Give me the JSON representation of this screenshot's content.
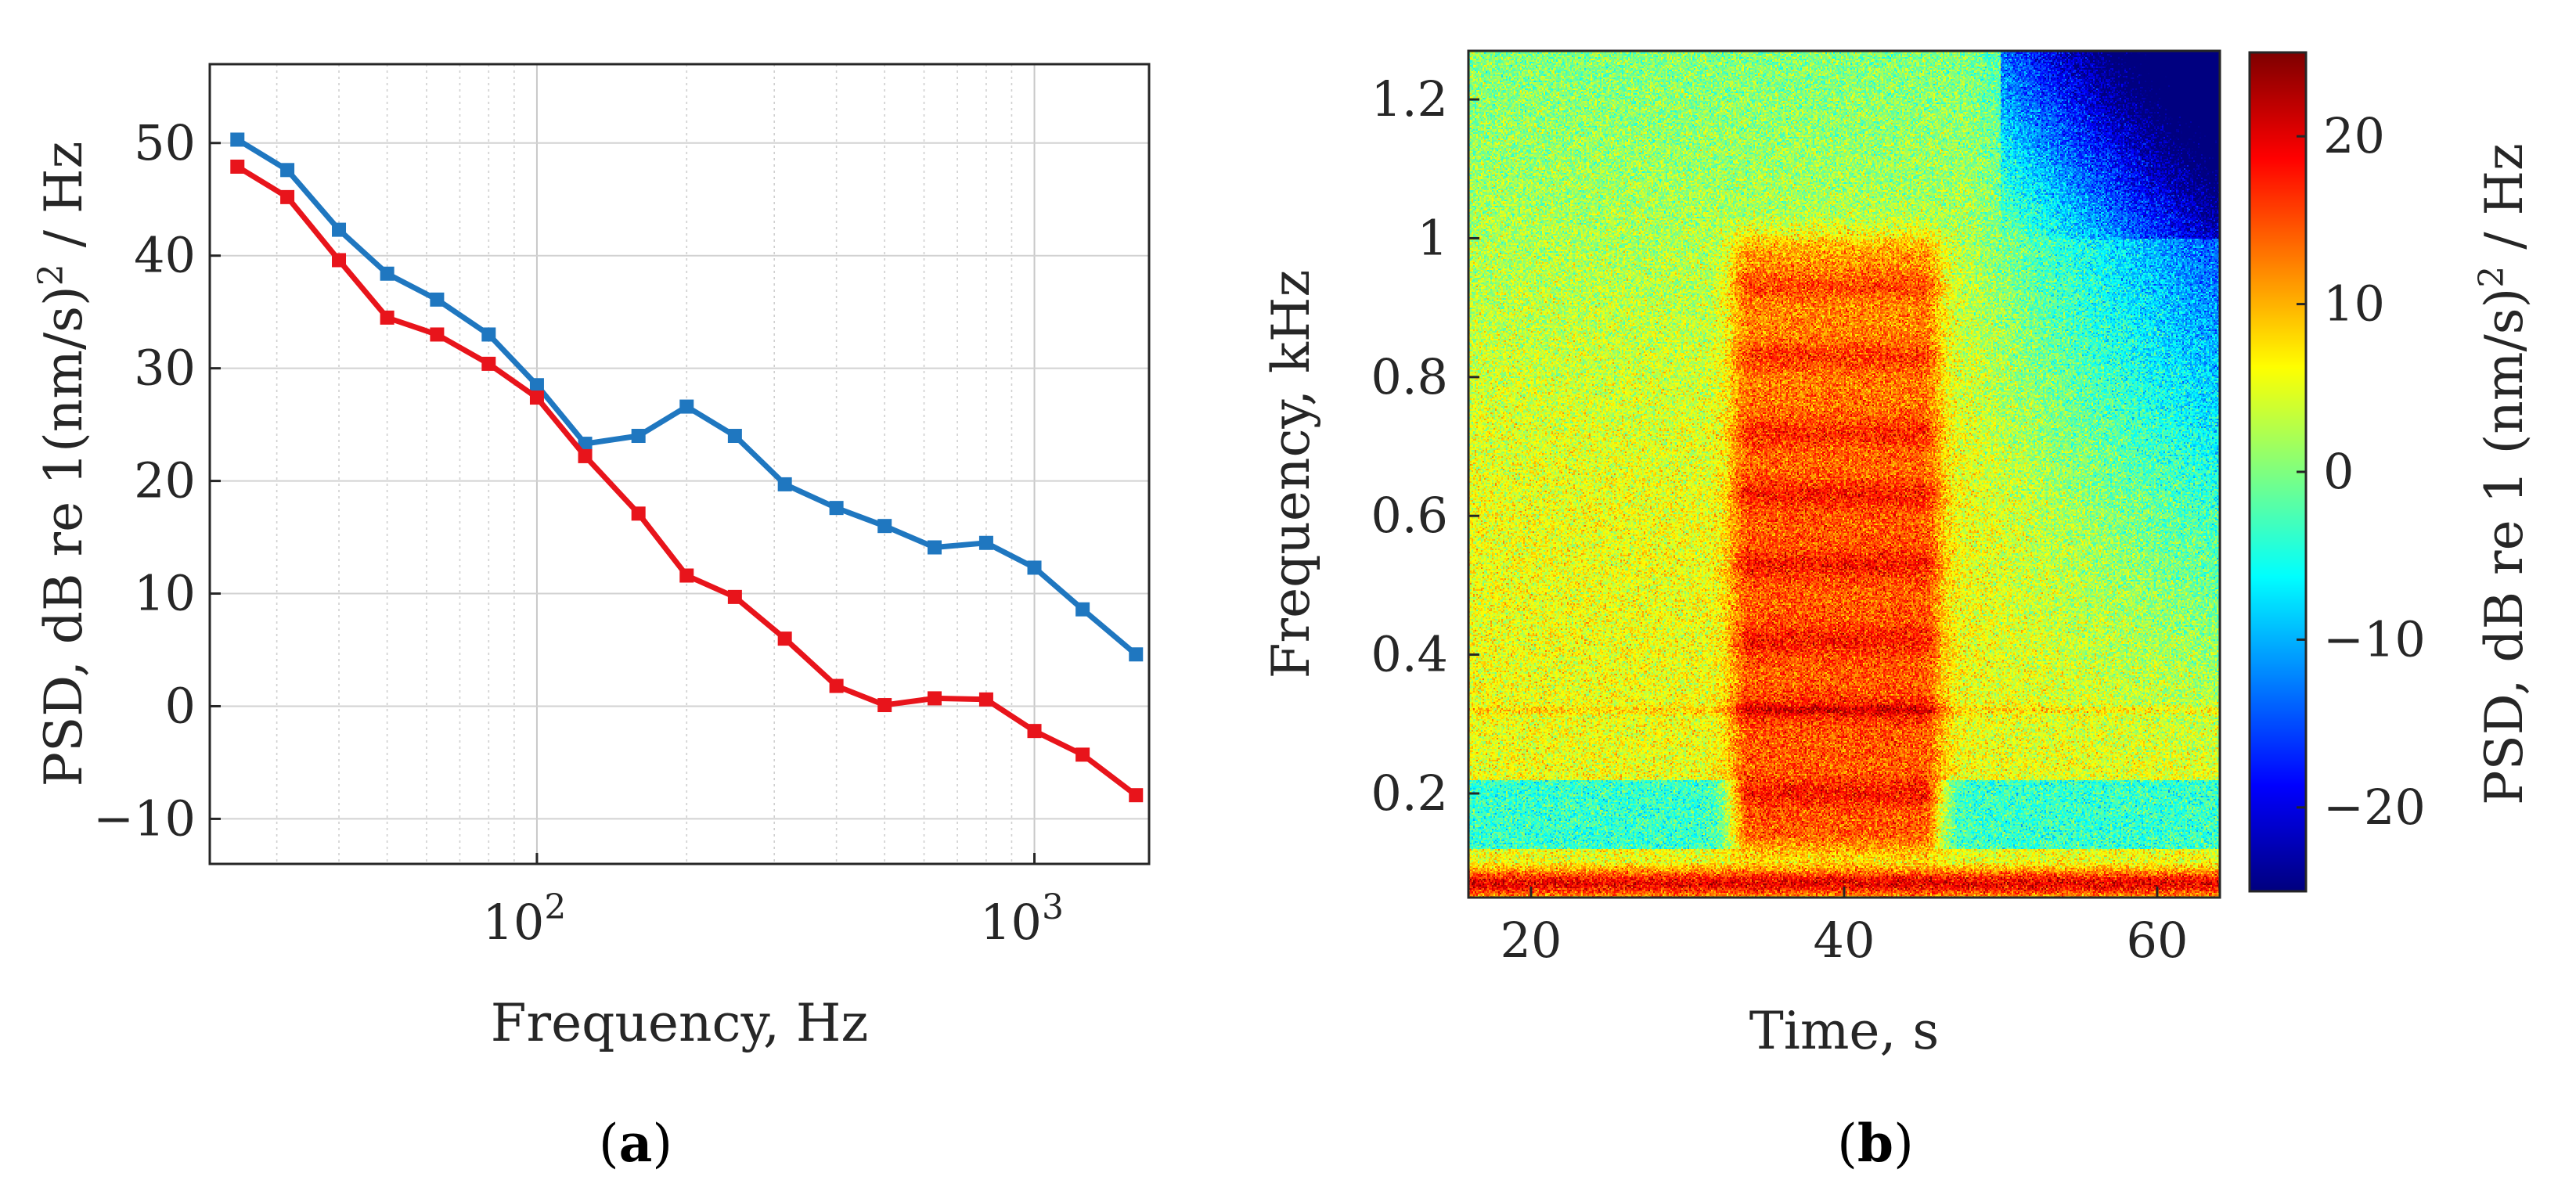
{
  "chart_data": [
    {
      "type": "line",
      "panel_label": "a",
      "xscale": "log",
      "xlabel": "Frequency, Hz",
      "ylabel": "PSD, dB re 1(nm/s)",
      "ylabel_sup": "2",
      "ylabel_tail": " / Hz",
      "xlim": [
        22,
        1700
      ],
      "ylim": [
        -14,
        57
      ],
      "x_ticks": [
        {
          "value": 100,
          "base": "10",
          "exp": "2"
        },
        {
          "value": 1000,
          "base": "10",
          "exp": "3"
        }
      ],
      "y_ticks": [
        -10,
        0,
        10,
        20,
        30,
        40,
        50
      ],
      "y_tick_labels": [
        "−10",
        "0",
        "10",
        "20",
        "30",
        "40",
        "50"
      ],
      "grid": true,
      "x": [
        25,
        31.5,
        40,
        50,
        63,
        80,
        100,
        125,
        160,
        200,
        250,
        315,
        400,
        500,
        630,
        800,
        1000,
        1250,
        1600
      ],
      "series": [
        {
          "name": "blue",
          "color": "#1f77c0",
          "values": [
            50.3,
            47.6,
            42.3,
            38.4,
            36.1,
            33.0,
            28.5,
            23.3,
            24.0,
            26.6,
            24.0,
            19.7,
            17.6,
            16.0,
            14.1,
            14.5,
            12.3,
            8.6,
            4.6
          ]
        },
        {
          "name": "red",
          "color": "#e8141b",
          "values": [
            47.9,
            45.2,
            39.6,
            34.5,
            33.0,
            30.4,
            27.4,
            22.2,
            17.1,
            11.6,
            9.7,
            6.0,
            1.8,
            0.1,
            0.7,
            0.6,
            -2.2,
            -4.3,
            -7.9
          ]
        }
      ]
    },
    {
      "type": "heatmap",
      "panel_label": "b",
      "xlabel": "Time, s",
      "ylabel": "Frequency, kHz",
      "xlim": [
        16,
        64
      ],
      "ylim": [
        0.05,
        1.27
      ],
      "x_ticks": [
        20,
        40,
        60
      ],
      "x_tick_labels": [
        "20",
        "40",
        "60"
      ],
      "y_ticks": [
        0.2,
        0.4,
        0.6,
        0.8,
        1.0,
        1.2
      ],
      "y_tick_labels": [
        "0.2",
        "0.4",
        "0.6",
        "0.8",
        "1",
        "1.2"
      ],
      "colormap": "jet",
      "colorbar": {
        "range": [
          -25,
          25
        ],
        "ticks": [
          -20,
          -10,
          0,
          10,
          20
        ],
        "tick_labels": [
          "−20",
          "−10",
          "0",
          "10",
          "20"
        ],
        "label": "PSD, dB re 1 (nm/s)",
        "label_sup": "2",
        "label_tail": " / Hz"
      },
      "features": {
        "background_level_db": 3,
        "event_time_range_s": [
          32,
          46
        ],
        "event_freq_range_khz": [
          0.15,
          0.97
        ],
        "event_level_db": 15,
        "event_bands_khz": [
          0.2,
          0.32,
          0.42,
          0.53,
          0.63,
          0.72,
          0.83,
          0.93
        ],
        "low_freq_line_khz": 0.07,
        "low_level_band_khz": [
          0.12,
          0.22
        ],
        "quiet_region": "top-right"
      }
    }
  ],
  "captions": {
    "a": "a",
    "b": "b"
  }
}
